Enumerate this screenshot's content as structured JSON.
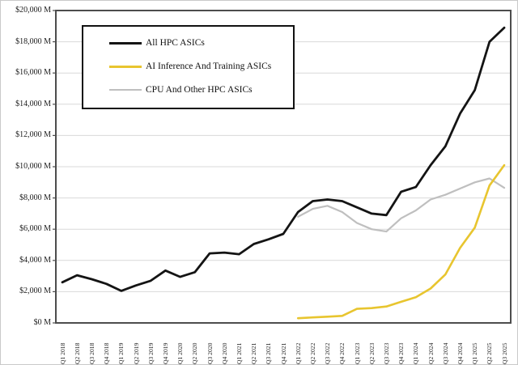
{
  "chart_data": {
    "type": "line",
    "title": "",
    "xlabel": "",
    "ylabel": "",
    "ylim": [
      0,
      20000
    ],
    "y_tick_step": 2000,
    "grid": "horizontal",
    "legend_position": "top-left-inside",
    "categories": [
      "Q1 2018",
      "Q2 2018",
      "Q3 2018",
      "Q4 2018",
      "Q1 2019",
      "Q2 2019",
      "Q3 2019",
      "Q4 2019",
      "Q1 2020",
      "Q2 2020",
      "Q3 2020",
      "Q4 2020",
      "Q1 2021",
      "Q2 2021",
      "Q3 2021",
      "Q4 2021",
      "Q1 2022",
      "Q2 2022",
      "Q3 2022",
      "Q4 2022",
      "Q1 2023",
      "Q2 2023",
      "Q3 2023",
      "Q4 2023",
      "Q1 2024",
      "Q2 2024",
      "Q3 2024",
      "Q4 2024",
      "Q1 2025",
      "Q2 2025",
      "Q3 2025"
    ],
    "series": [
      {
        "name": "All HPC ASICs",
        "color": "#141414",
        "stroke_width": 2.8,
        "values": [
          2600,
          3050,
          2800,
          2500,
          2050,
          2400,
          2700,
          3350,
          2950,
          3250,
          4450,
          4500,
          4400,
          5050,
          5350,
          5700,
          7100,
          7800,
          7900,
          7800,
          7400,
          7000,
          6900,
          8400,
          8700,
          10100,
          11300,
          13400,
          14900,
          18000,
          18900
        ]
      },
      {
        "name": "AI Inference And Training ASICs",
        "color": "#E8C52F",
        "stroke_width": 2.6,
        "values": [
          null,
          null,
          null,
          null,
          null,
          null,
          null,
          null,
          null,
          null,
          null,
          null,
          null,
          null,
          null,
          null,
          300,
          350,
          400,
          450,
          900,
          950,
          1050,
          1350,
          1650,
          2200,
          3100,
          4800,
          6100,
          8800,
          10100
        ]
      },
      {
        "name": "CPU And Other HPC ASICs",
        "color": "#BFBFBF",
        "stroke_width": 2.2,
        "values": [
          null,
          null,
          null,
          null,
          null,
          null,
          null,
          null,
          null,
          null,
          null,
          null,
          null,
          null,
          null,
          null,
          6800,
          7300,
          7500,
          7100,
          6400,
          6000,
          5850,
          6700,
          7200,
          7900,
          8200,
          8600,
          9000,
          9250,
          8650
        ]
      }
    ]
  },
  "y_axis": {
    "tick_labels": [
      "$20,000 M",
      "$18,000 M",
      "$16,000 M",
      "$14,000 M",
      "$12,000 M",
      "$10,000 M",
      "$8,000 M",
      "$6,000 M",
      "$4,000 M",
      "$2,000 M",
      "$0 M"
    ]
  },
  "legend": {
    "items": [
      {
        "label": "All HPC ASICs",
        "color": "#141414",
        "thickness": 3
      },
      {
        "label": "AI Inference And Training ASICs",
        "color": "#E8C52F",
        "thickness": 3
      },
      {
        "label": "CPU And Other HPC ASICs",
        "color": "#BFBFBF",
        "thickness": 2
      }
    ]
  },
  "colors": {
    "grid_line": "#d9d9d9",
    "plot_border": "#4d4d4d",
    "background": "#ffffff"
  }
}
